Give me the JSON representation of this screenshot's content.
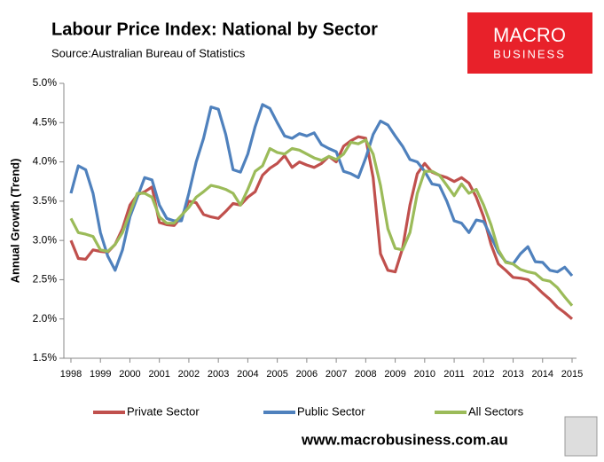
{
  "chart_data": {
    "type": "line",
    "title": "Labour Price Index: National by Sector",
    "subtitle": "Source:Australian Bureau of Statistics",
    "y_label": "Annual Growth (Trend)",
    "logo": [
      "MACRO",
      "BUSINESS"
    ],
    "footer": "www.macrobusiness.com.au",
    "x": [
      1998,
      1998.25,
      1998.5,
      1998.75,
      1999,
      1999.25,
      1999.5,
      1999.75,
      2000,
      2000.25,
      2000.5,
      2000.75,
      2001,
      2001.25,
      2001.5,
      2001.75,
      2002,
      2002.25,
      2002.5,
      2002.75,
      2003,
      2003.25,
      2003.5,
      2003.75,
      2004,
      2004.25,
      2004.5,
      2004.75,
      2005,
      2005.25,
      2005.5,
      2005.75,
      2006,
      2006.25,
      2006.5,
      2006.75,
      2007,
      2007.25,
      2007.5,
      2007.75,
      2008,
      2008.25,
      2008.5,
      2008.75,
      2009,
      2009.25,
      2009.5,
      2009.75,
      2010,
      2010.25,
      2010.5,
      2010.75,
      2011,
      2011.25,
      2011.5,
      2011.75,
      2012,
      2012.25,
      2012.5,
      2012.75,
      2013,
      2013.25,
      2013.5,
      2013.75,
      2014,
      2014.25,
      2014.5,
      2014.75,
      2015
    ],
    "series": [
      {
        "name": "Private Sector",
        "color": "#c0504d",
        "values": [
          3.0,
          2.77,
          2.76,
          2.88,
          2.86,
          2.85,
          2.95,
          3.15,
          3.45,
          3.58,
          3.62,
          3.68,
          3.23,
          3.2,
          3.19,
          3.3,
          3.5,
          3.48,
          3.33,
          3.3,
          3.28,
          3.37,
          3.47,
          3.45,
          3.55,
          3.62,
          3.83,
          3.92,
          3.98,
          4.08,
          3.93,
          4.0,
          3.96,
          3.93,
          3.98,
          4.07,
          4.0,
          4.2,
          4.27,
          4.32,
          4.3,
          3.8,
          2.83,
          2.62,
          2.6,
          2.9,
          3.45,
          3.85,
          3.98,
          3.87,
          3.83,
          3.8,
          3.75,
          3.8,
          3.73,
          3.55,
          3.3,
          2.95,
          2.7,
          2.62,
          2.53,
          2.52,
          2.5,
          2.42,
          2.33,
          2.25,
          2.15,
          2.08,
          2.0
        ]
      },
      {
        "name": "Public Sector",
        "color": "#4f81bd",
        "values": [
          3.6,
          3.95,
          3.9,
          3.6,
          3.1,
          2.8,
          2.62,
          2.88,
          3.3,
          3.55,
          3.8,
          3.77,
          3.45,
          3.28,
          3.25,
          3.25,
          3.6,
          4.0,
          4.3,
          4.7,
          4.67,
          4.35,
          3.9,
          3.87,
          4.1,
          4.45,
          4.73,
          4.68,
          4.5,
          4.33,
          4.3,
          4.36,
          4.33,
          4.37,
          4.22,
          4.17,
          4.13,
          3.88,
          3.85,
          3.8,
          4.05,
          4.35,
          4.52,
          4.47,
          4.33,
          4.2,
          4.03,
          4.0,
          3.88,
          3.72,
          3.7,
          3.5,
          3.25,
          3.22,
          3.1,
          3.26,
          3.24,
          3.05,
          2.85,
          2.73,
          2.7,
          2.83,
          2.92,
          2.73,
          2.72,
          2.62,
          2.6,
          2.66,
          2.55
        ]
      },
      {
        "name": "All Sectors",
        "color": "#9bbb59",
        "values": [
          3.28,
          3.1,
          3.08,
          3.05,
          2.88,
          2.86,
          2.95,
          3.1,
          3.35,
          3.6,
          3.6,
          3.55,
          3.3,
          3.22,
          3.22,
          3.32,
          3.42,
          3.55,
          3.62,
          3.7,
          3.68,
          3.65,
          3.6,
          3.45,
          3.65,
          3.88,
          3.95,
          4.17,
          4.12,
          4.1,
          4.17,
          4.15,
          4.1,
          4.05,
          4.02,
          4.07,
          4.03,
          4.1,
          4.25,
          4.23,
          4.28,
          4.1,
          3.7,
          3.15,
          2.9,
          2.88,
          3.1,
          3.6,
          3.88,
          3.88,
          3.83,
          3.7,
          3.57,
          3.72,
          3.6,
          3.65,
          3.45,
          3.2,
          2.88,
          2.72,
          2.7,
          2.63,
          2.6,
          2.58,
          2.5,
          2.48,
          2.4,
          2.28,
          2.17
        ]
      }
    ],
    "xlim": [
      1997.76,
      2015.15
    ],
    "xticks": [
      1998,
      1999,
      2000,
      2001,
      2002,
      2003,
      2004,
      2005,
      2006,
      2007,
      2008,
      2009,
      2010,
      2011,
      2012,
      2013,
      2014,
      2015
    ],
    "ylim": [
      1.5,
      5.0
    ],
    "yticks": [
      {
        "value": 1.5,
        "label": "1.5%"
      },
      {
        "value": 2.0,
        "label": "2.0%"
      },
      {
        "value": 2.5,
        "label": "2.5%"
      },
      {
        "value": 3.0,
        "label": "3.0%"
      },
      {
        "value": 3.5,
        "label": "3.5%"
      },
      {
        "value": 4.0,
        "label": "4.0%"
      },
      {
        "value": 4.5,
        "label": "4.5%"
      },
      {
        "value": 5.0,
        "label": "5.0%"
      }
    ],
    "legend": "bottom"
  }
}
